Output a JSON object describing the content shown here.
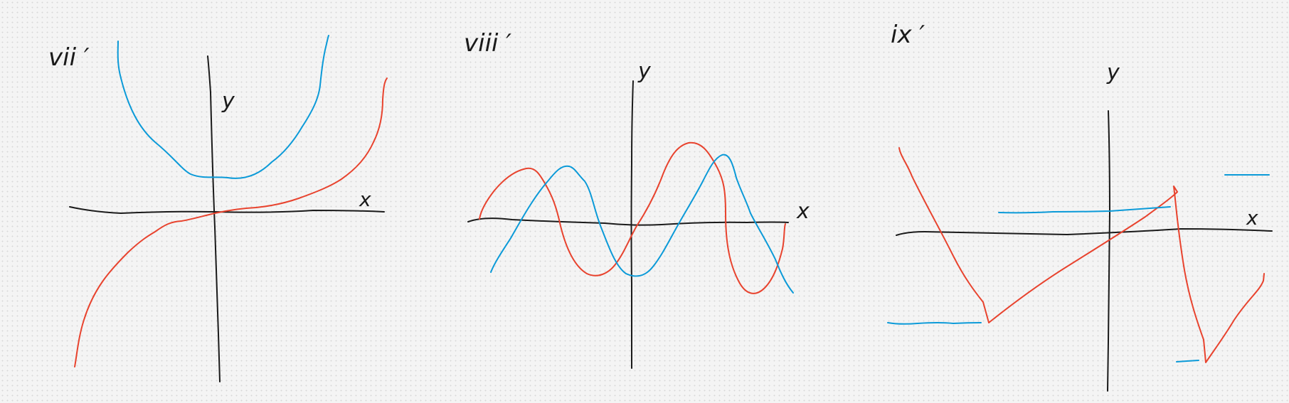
{
  "page": {
    "background": "#f4f4f4",
    "colors": {
      "axis": "#1a1a1a",
      "red": "#e8432e",
      "blue": "#0b9ad8"
    }
  },
  "panels": [
    {
      "id": "vii",
      "title": "vii ′",
      "x_axis_label": "x",
      "y_axis_label": "y"
    },
    {
      "id": "viii",
      "title": "viii ′",
      "x_axis_label": "x",
      "y_axis_label": "y"
    },
    {
      "id": "ix",
      "title": "ix ′",
      "x_axis_label": "x",
      "y_axis_label": "y"
    }
  ]
}
